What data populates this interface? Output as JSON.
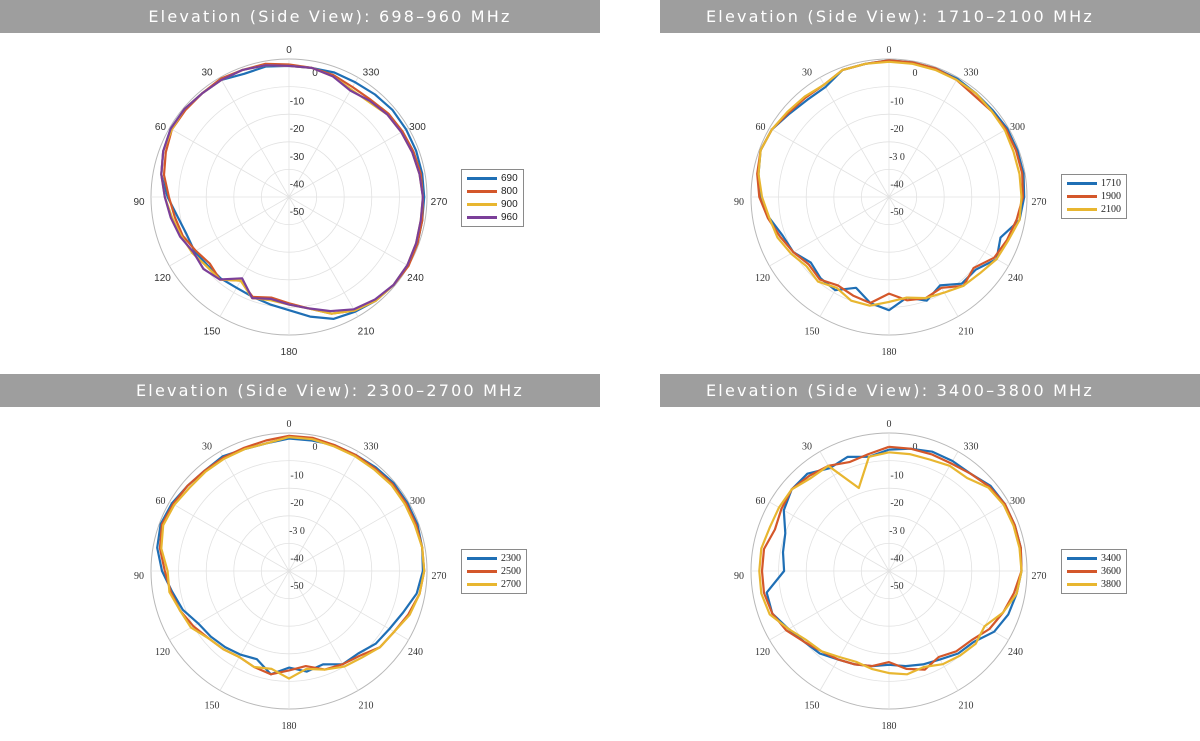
{
  "chart_data": [
    {
      "type": "polar",
      "title": "Elevation (Side View): 698–960 MHz",
      "angle_labels": [
        "0",
        "30",
        "60",
        "90",
        "120",
        "150",
        "180",
        "210",
        "240",
        "270",
        "300",
        "330"
      ],
      "radial_labels": [
        "0",
        "-10",
        "-20",
        "-30",
        "-40",
        "-50"
      ],
      "rlim": [
        -50,
        0
      ],
      "legend_position": "right",
      "series": [
        {
          "name": "690",
          "color": "#1f6fb5",
          "values": [
            -2.5,
            -2,
            -2.5,
            -1,
            -1,
            -0.5,
            -0.5,
            -1.5,
            -3,
            -6,
            -9,
            -10.5,
            -10.5,
            -11.5,
            -11.5,
            -12,
            -11.5,
            -10.5,
            -9,
            -6,
            -3,
            -2,
            -1,
            -0.5,
            -0.5,
            -0.5,
            -1,
            -1,
            -1,
            -1,
            -1,
            -1,
            -1.5,
            -2,
            -2,
            -2.5
          ]
        },
        {
          "name": "800",
          "color": "#d4572a",
          "values": [
            -2,
            -1,
            -1,
            -0.5,
            -1,
            -1,
            -1,
            -2.5,
            -4,
            -6.5,
            -8,
            -9,
            -11,
            -12.5,
            -11,
            -15,
            -11.5,
            -13,
            -11.5,
            -9,
            -5,
            -2.5,
            -1,
            -0.5,
            0,
            -0.5,
            -1,
            -1.5,
            -1.5,
            -2,
            -2.5,
            -3,
            -4,
            -4,
            -3,
            -2.5
          ]
        },
        {
          "name": "900",
          "color": "#e8b630",
          "values": [
            -2.5,
            -1.5,
            -1,
            -1,
            -1,
            -0.5,
            -1,
            -1.5,
            -3,
            -5,
            -7,
            -8.5,
            -9.5,
            -11,
            -11,
            -15,
            -11,
            -12,
            -11,
            -9,
            -5,
            -2.5,
            -1,
            -0.5,
            -0.5,
            -1,
            -1.5,
            -1.5,
            -2,
            -2.5,
            -3,
            -3.5,
            -5,
            -5,
            -3.5,
            -2.5
          ]
        },
        {
          "name": "960",
          "color": "#7b3f99",
          "values": [
            -2.5,
            -1.5,
            -1,
            -1,
            -1,
            -0.5,
            -0.5,
            -1.5,
            -3,
            -5,
            -6.5,
            -8,
            -10,
            -9.5,
            -11,
            -16,
            -11,
            -12.5,
            -11,
            -9,
            -6,
            -3,
            -1.5,
            -0.5,
            -0.5,
            -1,
            -1.5,
            -1.5,
            -2,
            -2.5,
            -3,
            -3.5,
            -4.5,
            -5.5,
            -3.5,
            -2.5
          ]
        }
      ]
    },
    {
      "type": "polar",
      "title": "Elevation (Side View): 1710–2100 MHz",
      "angle_labels": [
        "0",
        "30",
        "60",
        "90",
        "120",
        "150",
        "180",
        "210",
        "240",
        "270",
        "300",
        "330"
      ],
      "radial_labels": [
        "0",
        "-10",
        "-20",
        "-3 0",
        "-40",
        "-50"
      ],
      "rlim": [
        -50,
        0
      ],
      "legend_position": "right",
      "series": [
        {
          "name": "1710",
          "color": "#1f6fb5",
          "values": [
            -0.5,
            -1,
            -1,
            -4,
            -4,
            -3,
            -1,
            -0.5,
            -2,
            -3.5,
            -6,
            -9,
            -10,
            -13,
            -11.5,
            -11,
            -15,
            -11,
            -9,
            -13,
            -10,
            -13,
            -9,
            -9,
            -5,
            -7,
            -2,
            -1,
            -0.5,
            -0.5,
            -0.5,
            -1,
            -1,
            -0.5,
            -0.5,
            -0.5
          ]
        },
        {
          "name": "1900",
          "color": "#d4572a",
          "values": [
            -0.5,
            -1,
            -1,
            -3,
            -3,
            -2.5,
            -1,
            -0.5,
            -1.5,
            -3,
            -5.5,
            -8,
            -10,
            -12,
            -11,
            -13,
            -12,
            -11,
            -15,
            -12,
            -11,
            -12,
            -8,
            -10,
            -6,
            -4.5,
            -3,
            -1.5,
            -1,
            -1,
            -1,
            -1.5,
            -2,
            -1,
            -0.5,
            -0.5
          ]
        },
        {
          "name": "2100",
          "color": "#e8b630",
          "values": [
            -1,
            -1,
            -1,
            -3,
            -2.5,
            -2,
            -1,
            -0.5,
            -2,
            -4,
            -6,
            -7,
            -9,
            -11,
            -10,
            -12,
            -10,
            -10,
            -12,
            -13,
            -11,
            -10,
            -8,
            -7,
            -5,
            -4,
            -2,
            -2,
            -2,
            -2,
            -1.5,
            -1.5,
            -1,
            -1,
            -1,
            -1
          ]
        }
      ]
    },
    {
      "type": "polar",
      "title": "Elevation (Side View): 2300–2700 MHz",
      "angle_labels": [
        "0",
        "30",
        "60",
        "90",
        "120",
        "150",
        "180",
        "210",
        "240",
        "270",
        "300",
        "330"
      ],
      "radial_labels": [
        "0",
        "-10",
        "-20",
        "-3 0",
        "-40",
        "-50"
      ],
      "rlim": [
        -50,
        0
      ],
      "legend_position": "right",
      "series": [
        {
          "name": "2300",
          "color": "#1f6fb5",
          "values": [
            -2,
            -3,
            -3,
            -2,
            -2.5,
            -2,
            -1,
            -0.5,
            -1.5,
            -4,
            -7,
            -9,
            -12,
            -13,
            -14,
            -15,
            -16,
            -12,
            -15,
            -13,
            -14,
            -11,
            -11,
            -9,
            -8,
            -6,
            -3,
            -1.5,
            -1,
            -0.5,
            -0.5,
            -0.5,
            -1,
            -1.5,
            -1.5,
            -2
          ]
        },
        {
          "name": "2500",
          "color": "#d4572a",
          "values": [
            -1,
            -2,
            -2.5,
            -2.5,
            -2.5,
            -2,
            -1.5,
            -1,
            -2.5,
            -5,
            -6.5,
            -8,
            -10,
            -12,
            -13,
            -14,
            -13,
            -12,
            -14,
            -15,
            -12,
            -11,
            -10,
            -7,
            -6,
            -4,
            -2,
            -1,
            -1,
            -1,
            -1,
            -1,
            -1.5,
            -1.5,
            -1.5,
            -1
          ]
        },
        {
          "name": "2700",
          "color": "#e8b630",
          "values": [
            -1.5,
            -3,
            -3,
            -3,
            -3,
            -3,
            -2,
            -1.5,
            -3,
            -6,
            -6,
            -8,
            -9,
            -12,
            -13,
            -14,
            -13,
            -14,
            -11,
            -14,
            -12,
            -10,
            -9,
            -7,
            -6,
            -3.5,
            -2,
            -1,
            -1,
            -1.5,
            -1.5,
            -1.5,
            -2,
            -2,
            -2,
            -1.5
          ]
        }
      ]
    },
    {
      "type": "polar",
      "title": "Elevation (Side View): 3400–3800 MHz",
      "angle_labels": [
        "0",
        "30",
        "60",
        "90",
        "120",
        "150",
        "180",
        "210",
        "240",
        "270",
        "300",
        "330"
      ],
      "radial_labels": [
        "0",
        "-10",
        "-20",
        "-3 0",
        "-40",
        "-50"
      ],
      "rlim": [
        -50,
        0
      ],
      "legend_position": "right",
      "series": [
        {
          "name": "3400",
          "color": "#1f6fb5",
          "values": [
            -6,
            -8,
            -6,
            -7,
            -4,
            -4,
            -6,
            -10,
            -11,
            -12,
            -5,
            -5,
            -8,
            -10,
            -11,
            -13,
            -14,
            -15,
            -16,
            -15,
            -14,
            -13,
            -11,
            -10,
            -6,
            -4,
            -3,
            -2,
            -1.5,
            -1.5,
            -1.5,
            -2,
            -4,
            -4,
            -4,
            -5
          ]
        },
        {
          "name": "3600",
          "color": "#d4572a",
          "values": [
            -5,
            -7,
            -8,
            -6,
            -5,
            -4,
            -5,
            -6,
            -4,
            -4,
            -4,
            -5,
            -7,
            -10,
            -12,
            -13,
            -14,
            -15,
            -17,
            -14,
            -12,
            -14,
            -12,
            -11,
            -8,
            -6,
            -4,
            -2,
            -1.5,
            -1.5,
            -1.5,
            -2.5,
            -4,
            -5,
            -5,
            -5
          ]
        },
        {
          "name": "3800",
          "color": "#e8b630",
          "values": [
            -7,
            -8,
            -18,
            -6,
            -6,
            -4,
            -4,
            -4,
            -3,
            -3,
            -3,
            -4,
            -8,
            -11,
            -12,
            -14,
            -15,
            -14,
            -13,
            -12,
            -13,
            -11,
            -10,
            -9,
            -10,
            -6,
            -3,
            -2,
            -2,
            -2,
            -2,
            -3,
            -6,
            -6,
            -7,
            -7
          ]
        }
      ]
    }
  ]
}
